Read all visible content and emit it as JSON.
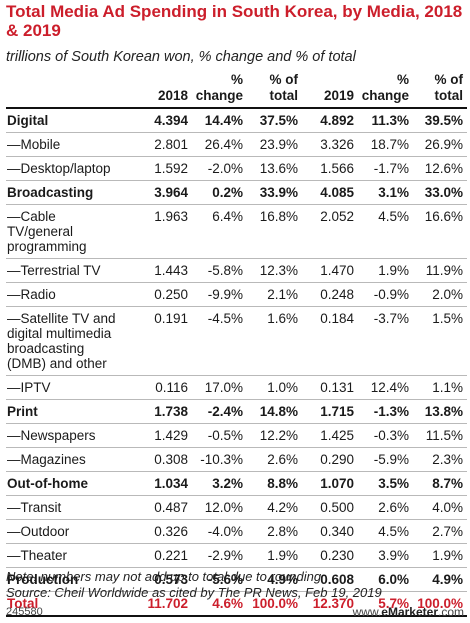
{
  "title": "Total Media Ad Spending in South Korea, by Media, 2018 & 2019",
  "subtitle": "trillions of South Korean won, % change and % of total",
  "chart_data": {
    "type": "table",
    "columns": [
      "",
      "2018",
      "% change",
      "% of total",
      "2019",
      "% change",
      "% of total"
    ],
    "rows": [
      {
        "label": "Digital",
        "level": "main",
        "values": [
          "4.394",
          "14.4%",
          "37.5%",
          "4.892",
          "11.3%",
          "39.5%"
        ]
      },
      {
        "label": "—Mobile",
        "level": "sub",
        "values": [
          "2.801",
          "26.4%",
          "23.9%",
          "3.326",
          "18.7%",
          "26.9%"
        ]
      },
      {
        "label": "—Desktop/laptop",
        "level": "sub",
        "values": [
          "1.592",
          "-2.0%",
          "13.6%",
          "1.566",
          "-1.7%",
          "12.6%"
        ]
      },
      {
        "label": "Broadcasting",
        "level": "main",
        "values": [
          "3.964",
          "0.2%",
          "33.9%",
          "4.085",
          "3.1%",
          "33.0%"
        ]
      },
      {
        "label": "—Cable TV/general programming",
        "level": "sub",
        "values": [
          "1.963",
          "6.4%",
          "16.8%",
          "2.052",
          "4.5%",
          "16.6%"
        ]
      },
      {
        "label": "—Terrestrial TV",
        "level": "sub",
        "values": [
          "1.443",
          "-5.8%",
          "12.3%",
          "1.470",
          "1.9%",
          "11.9%"
        ]
      },
      {
        "label": "—Radio",
        "level": "sub",
        "values": [
          "0.250",
          "-9.9%",
          "2.1%",
          "0.248",
          "-0.9%",
          "2.0%"
        ]
      },
      {
        "label": "—Satellite TV and digital multimedia broadcasting (DMB) and other",
        "level": "sub",
        "values": [
          "0.191",
          "-4.5%",
          "1.6%",
          "0.184",
          "-3.7%",
          "1.5%"
        ]
      },
      {
        "label": "—IPTV",
        "level": "sub",
        "values": [
          "0.116",
          "17.0%",
          "1.0%",
          "0.131",
          "12.4%",
          "1.1%"
        ]
      },
      {
        "label": "Print",
        "level": "main",
        "values": [
          "1.738",
          "-2.4%",
          "14.8%",
          "1.715",
          "-1.3%",
          "13.8%"
        ]
      },
      {
        "label": "—Newspapers",
        "level": "sub",
        "values": [
          "1.429",
          "-0.5%",
          "12.2%",
          "1.425",
          "-0.3%",
          "11.5%"
        ]
      },
      {
        "label": "—Magazines",
        "level": "sub",
        "values": [
          "0.308",
          "-10.3%",
          "2.6%",
          "0.290",
          "-5.9%",
          "2.3%"
        ]
      },
      {
        "label": "Out-of-home",
        "level": "main",
        "values": [
          "1.034",
          "3.2%",
          "8.8%",
          "1.070",
          "3.5%",
          "8.7%"
        ]
      },
      {
        "label": "—Transit",
        "level": "sub",
        "values": [
          "0.487",
          "12.0%",
          "4.2%",
          "0.500",
          "2.6%",
          "4.0%"
        ]
      },
      {
        "label": "—Outdoor",
        "level": "sub",
        "values": [
          "0.326",
          "-4.0%",
          "2.8%",
          "0.340",
          "4.5%",
          "2.7%"
        ]
      },
      {
        "label": "—Theater",
        "level": "sub",
        "values": [
          "0.221",
          "-2.9%",
          "1.9%",
          "0.230",
          "3.9%",
          "1.9%"
        ]
      },
      {
        "label": "Production",
        "level": "main",
        "values": [
          "0.573",
          "-5.6%",
          "4.9%",
          "0.608",
          "6.0%",
          "4.9%"
        ]
      },
      {
        "label": "Total",
        "level": "total",
        "values": [
          "11.702",
          "4.6%",
          "100.0%",
          "12.370",
          "5.7%",
          "100.0%"
        ]
      }
    ]
  },
  "note": "Note: numbers may not add up to total due to rounding",
  "source": "Source: Cheil Worldwide as cited by The PR News, Feb 19, 2019",
  "chart_id": "245580",
  "brand_prefix": "www.",
  "brand_name": "eMarketer",
  "brand_suffix": ".com",
  "colors": {
    "accent": "#cc1e2b",
    "rule": "#b9b9b9"
  }
}
